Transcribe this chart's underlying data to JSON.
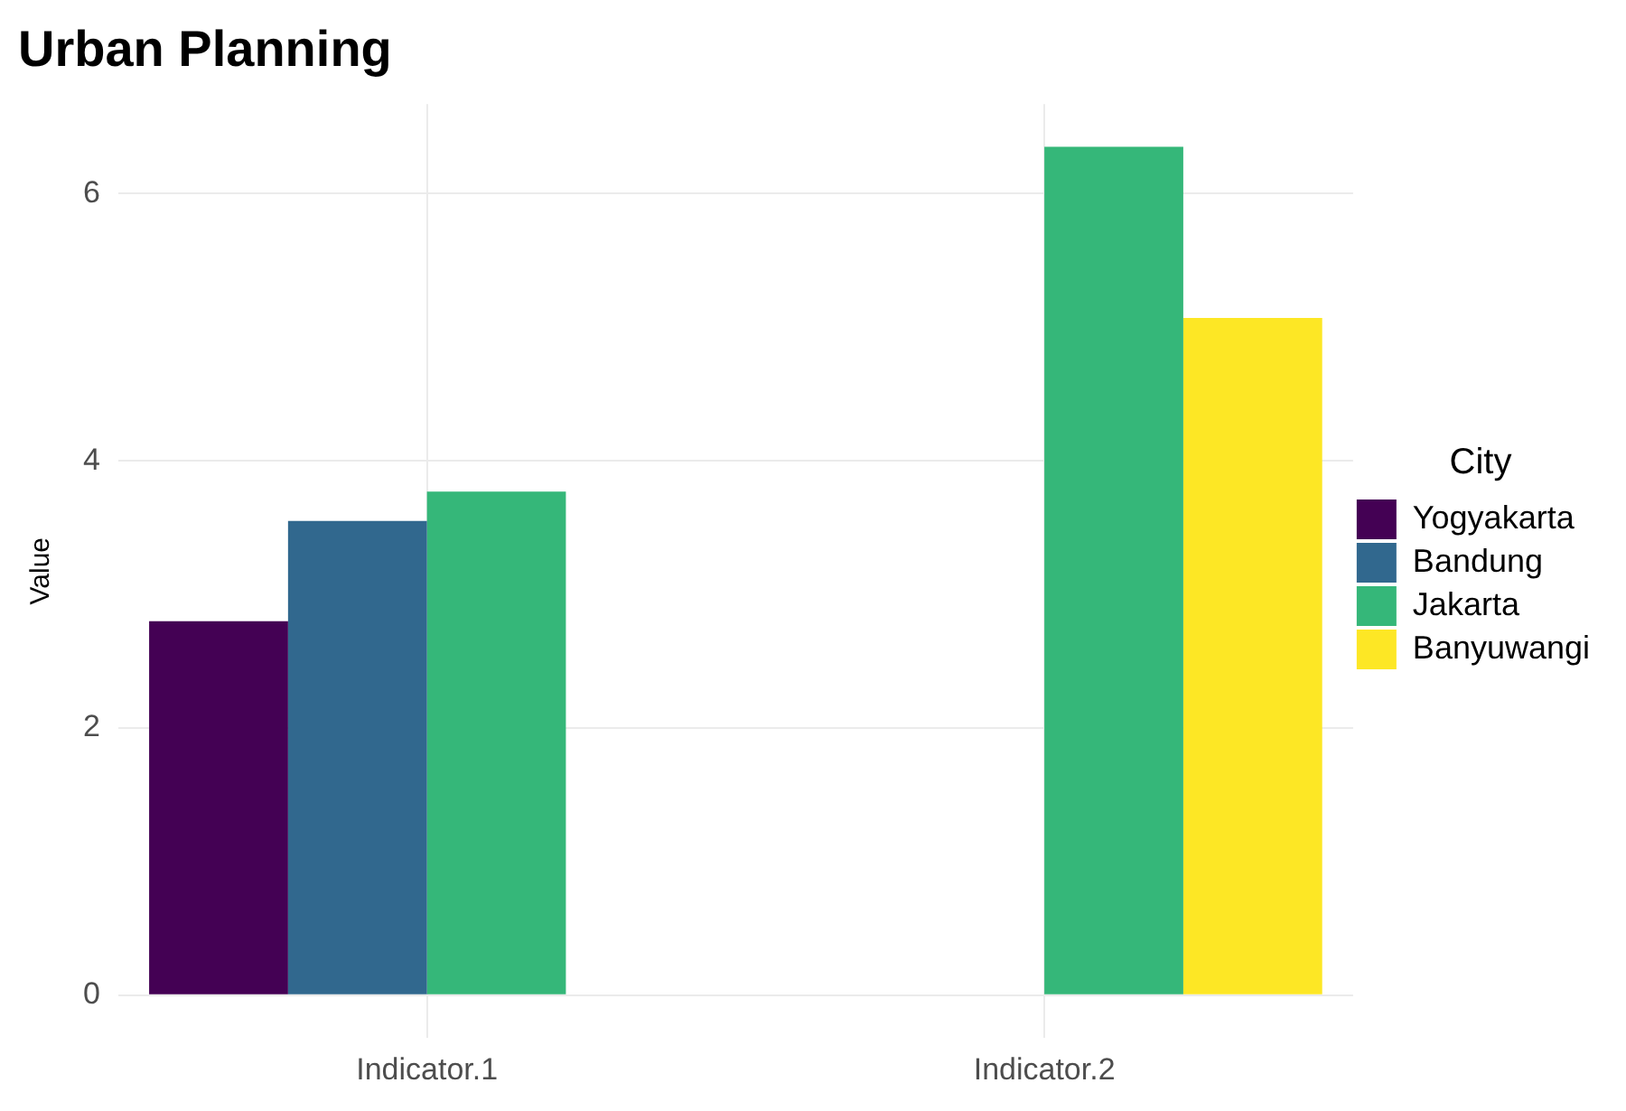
{
  "chart_data": {
    "type": "bar",
    "title": "Urban Planning",
    "ylabel": "Value",
    "legend_title": "City",
    "categories": [
      "Indicator.1",
      "Indicator.2"
    ],
    "series": [
      {
        "name": "Yogyakarta",
        "color": "#440154",
        "values": [
          2.8,
          null
        ]
      },
      {
        "name": "Bandung",
        "color": "#31688e",
        "values": [
          3.55,
          null
        ]
      },
      {
        "name": "Jakarta",
        "color": "#35b779",
        "values": [
          3.77,
          6.35
        ]
      },
      {
        "name": "Banyuwangi",
        "color": "#fde725",
        "values": [
          null,
          5.07
        ]
      }
    ],
    "ylim": [
      -0.32,
      6.67
    ],
    "yticks": [
      0,
      2,
      4,
      6
    ],
    "grid": true,
    "legend": "right"
  }
}
